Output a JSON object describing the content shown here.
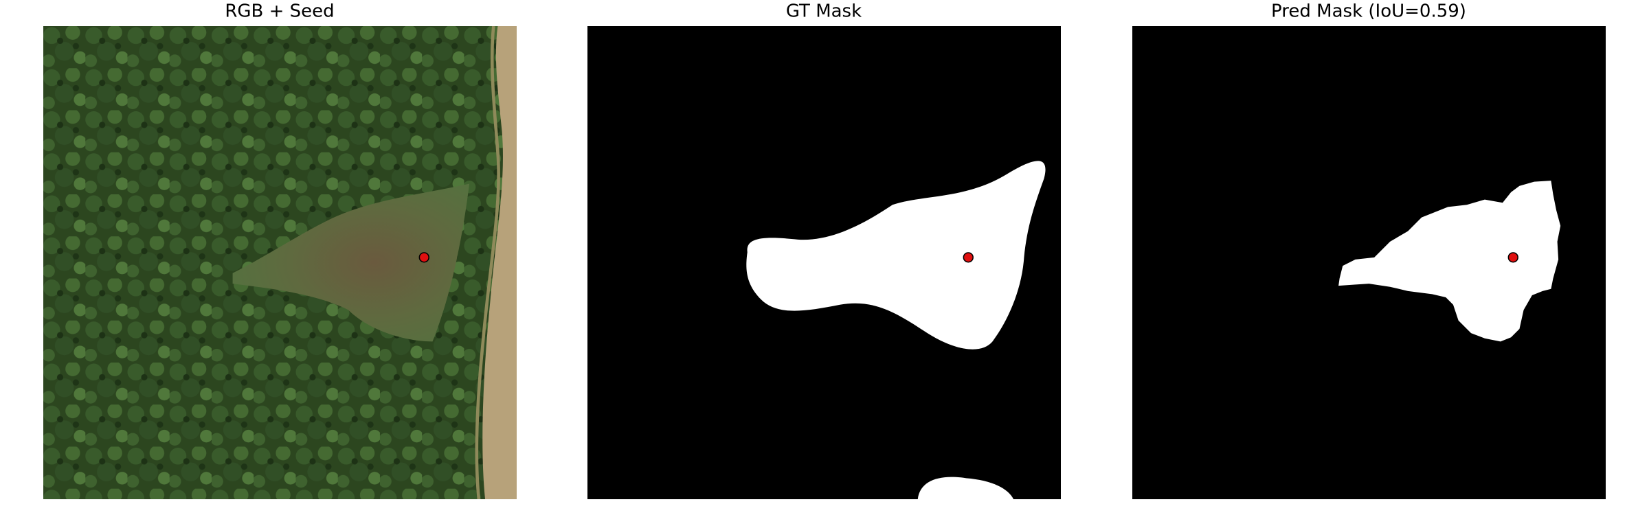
{
  "panels": [
    {
      "title": "RGB + Seed"
    },
    {
      "title": "GT Mask"
    },
    {
      "title": "Pred Mask (IoU=0.59)"
    }
  ]
}
